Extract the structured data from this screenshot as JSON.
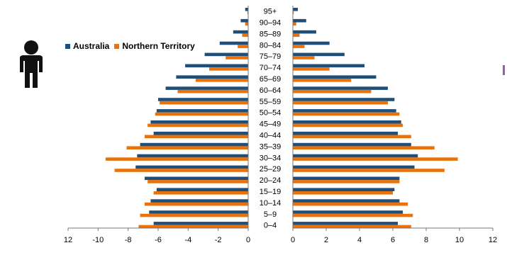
{
  "chart_data": {
    "type": "bar",
    "orientation": "horizontal",
    "categories": [
      "0–4",
      "5–9",
      "10–14",
      "15–19",
      "20–24",
      "25–29",
      "30–34",
      "35–39",
      "40–44",
      "45–49",
      "50–54",
      "55–59",
      "60–64",
      "65–69",
      "70–74",
      "75–79",
      "80–84",
      "85–89",
      "90–94",
      "95+"
    ],
    "series": [
      {
        "name": "Australia",
        "color": "#1f4e79",
        "values": [
          6.3,
          6.6,
          6.4,
          6.1,
          6.4,
          7.3,
          7.5,
          7.1,
          6.3,
          6.5,
          6.2,
          6.1,
          5.7,
          5.0,
          4.3,
          3.1,
          2.2,
          1.4,
          0.8,
          0.3
        ],
        "left_values": [
          6.3,
          6.6,
          6.5,
          6.1,
          6.9,
          7.5,
          7.4,
          7.2,
          6.3,
          6.5,
          6.1,
          6.0,
          5.5,
          4.8,
          4.2,
          2.9,
          1.9,
          1.0,
          0.5,
          0.2
        ]
      },
      {
        "name": "Northern Territory",
        "color": "#e8720c",
        "values": [
          7.1,
          7.2,
          6.9,
          6.0,
          6.4,
          9.1,
          9.9,
          8.5,
          7.1,
          6.6,
          6.4,
          5.7,
          4.7,
          3.5,
          2.2,
          1.3,
          0.7,
          0.4,
          0.2,
          0.05
        ],
        "left_values": [
          7.3,
          7.2,
          6.9,
          6.3,
          6.7,
          8.9,
          9.5,
          8.1,
          6.9,
          6.7,
          6.2,
          5.9,
          4.7,
          3.5,
          2.6,
          1.5,
          0.7,
          0.4,
          0.2,
          0.05
        ]
      }
    ],
    "left_panel": {
      "xlim": [
        12,
        0
      ],
      "ticks": [
        "12",
        "-10",
        "-8",
        "-6",
        "-4",
        "-2",
        "0"
      ]
    },
    "right_panel": {
      "xlim": [
        0,
        12
      ],
      "ticks": [
        "0",
        "2",
        "4",
        "6",
        "8",
        "10",
        "12"
      ]
    },
    "legend_position": "top-left",
    "grid": false
  },
  "legend": {
    "australia": "Australia",
    "northern_territory": "Northern Territory"
  },
  "colors": {
    "australia": "#1f4e79",
    "northern_territory": "#e8720c",
    "icon": "#111111",
    "edge_mark": "#9b59b6"
  },
  "icons": {
    "person": "male-person-icon"
  }
}
